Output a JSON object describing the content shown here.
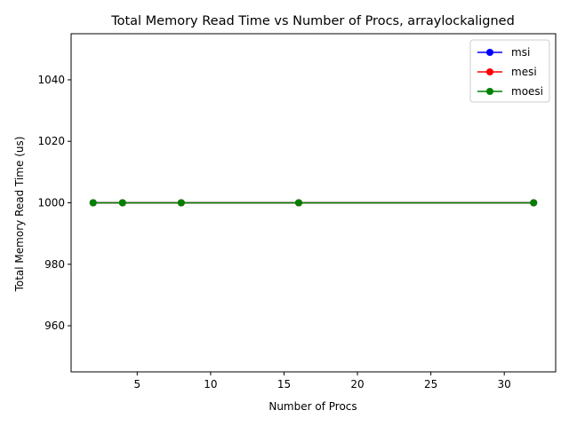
{
  "chart_data": {
    "type": "line",
    "title": "Total Memory Read Time vs Number of Procs, arraylockaligned",
    "xlabel": "Number of Procs",
    "ylabel": "Total Memory Read Time (us)",
    "x": [
      2,
      4,
      8,
      16,
      32
    ],
    "xlim": [
      0.5,
      33.5
    ],
    "ylim": [
      945,
      1055
    ],
    "xticks": [
      5,
      10,
      15,
      20,
      25,
      30
    ],
    "yticks": [
      960,
      980,
      1000,
      1020,
      1040
    ],
    "grid": false,
    "legend_position": "top-right",
    "series": [
      {
        "name": "msi",
        "color": "#0000ff",
        "values": [
          1000,
          1000,
          1000,
          1000,
          1000
        ]
      },
      {
        "name": "mesi",
        "color": "#ff0000",
        "values": [
          1000,
          1000,
          1000,
          1000,
          1000
        ]
      },
      {
        "name": "moesi",
        "color": "#008000",
        "values": [
          1000,
          1000,
          1000,
          1000,
          1000
        ]
      }
    ]
  }
}
